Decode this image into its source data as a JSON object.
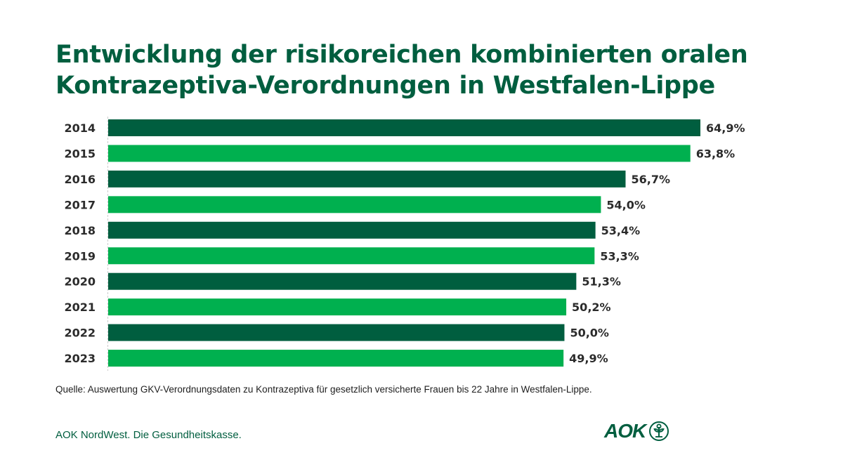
{
  "chart_data": {
    "type": "bar",
    "orientation": "horizontal",
    "title": "Entwicklung der risikoreichen kombinierten oralen Kontrazeptiva-Verordnungen in Westfalen-Lippe",
    "title_lines": [
      "Entwicklung der risikoreichen kombinierten oralen",
      "Kontrazeptiva-Verordnungen in Westfalen-Lippe"
    ],
    "xlabel": "",
    "ylabel": "",
    "categories": [
      "2014",
      "2015",
      "2016",
      "2017",
      "2018",
      "2019",
      "2020",
      "2021",
      "2022",
      "2023"
    ],
    "values": [
      64.9,
      63.8,
      56.7,
      54.0,
      53.4,
      53.3,
      51.3,
      50.2,
      50.0,
      49.9
    ],
    "value_labels": [
      "64,9%",
      "63,8%",
      "56,7%",
      "54,0%",
      "53,4%",
      "53,3%",
      "51,3%",
      "50,2%",
      "50,0%",
      "49,9%"
    ],
    "unit": "%",
    "xlim": [
      0,
      64.9
    ],
    "grid": false,
    "legend": "none",
    "colors": {
      "dark": "#005e3f",
      "light": "#00b04f",
      "label": "#2b2b2b",
      "axis": "#cccccc"
    }
  },
  "source": "Quelle: Auswertung GKV-Verordnungsdaten zu Kontrazeptiva für gesetzlich versicherte Frauen bis 22 Jahre in Westfalen-Lippe.",
  "footer": {
    "claim": "AOK NordWest. Die Gesundheitskasse.",
    "logo_text": "AOK",
    "logo_icon": "tree-in-circle-icon"
  },
  "brand_color": "#005e3f"
}
